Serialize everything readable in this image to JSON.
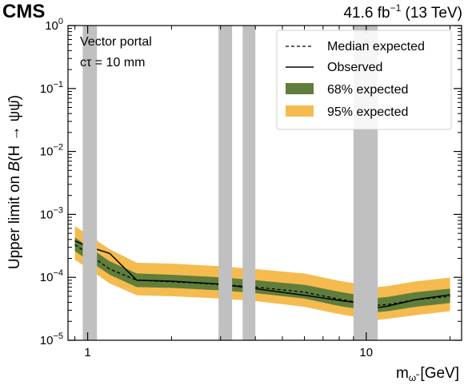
{
  "header": {
    "experiment": "CMS",
    "lumi_value": "41.6 fb",
    "lumi_exp": "−1",
    "energy": " (13 TeV)"
  },
  "annotation": {
    "line1": "Vector portal",
    "line2": "cτ = 10 mm"
  },
  "chart_data": {
    "type": "line",
    "title": "",
    "xlabel": "m_ω̃ [GeV]",
    "xlabel_main": "m",
    "xlabel_sub": "ω̃",
    "xlabel_unit": " [GeV]",
    "ylabel": "Upper limit on B(H → ψψ̄)",
    "x_scale": "log",
    "y_scale": "log",
    "xlim": [
      0.85,
      22
    ],
    "ylim": [
      1e-05,
      1.0
    ],
    "x_ticks": [
      {
        "value": 1,
        "label": "1"
      },
      {
        "value": 10,
        "label": "10"
      }
    ],
    "y_ticks": [
      {
        "value": 1e-05,
        "base": "10",
        "exp": "−5"
      },
      {
        "value": 0.0001,
        "base": "10",
        "exp": "−4"
      },
      {
        "value": 0.001,
        "base": "10",
        "exp": "−3"
      },
      {
        "value": 0.01,
        "base": "10",
        "exp": "−2"
      },
      {
        "value": 0.1,
        "base": "10",
        "exp": "−1"
      },
      {
        "value": 1.0,
        "base": "10",
        "exp": "0"
      }
    ],
    "legend_position": "top-right",
    "legend": [
      {
        "key": "median",
        "label": "Median expected",
        "style": "dashed",
        "color": "#000000"
      },
      {
        "key": "observed",
        "label": "Observed",
        "style": "solid",
        "color": "#000000"
      },
      {
        "key": "band68",
        "label": "68% expected",
        "style": "fill",
        "color": "#607d3b"
      },
      {
        "key": "band95",
        "label": "95% expected",
        "style": "fill",
        "color": "#f5bb4f"
      }
    ],
    "vetoed_mass_regions": [
      [
        0.96,
        1.08
      ],
      [
        2.95,
        3.3
      ],
      [
        3.6,
        4.0
      ],
      [
        9.0,
        11.0
      ]
    ],
    "x": [
      0.9,
      1.0,
      1.2,
      1.5,
      2.0,
      3.0,
      4.0,
      6.0,
      8.0,
      10.0,
      11.0,
      12.0,
      15.0,
      20.0
    ],
    "series": [
      {
        "name": "Median expected",
        "values": [
          0.00033,
          0.00024,
          0.000135,
          9e-05,
          8.5e-05,
          7.7e-05,
          7e-05,
          5.8e-05,
          4.5e-05,
          3.8e-05,
          3.6e-05,
          3.7e-05,
          4.4e-05,
          5e-05
        ]
      },
      {
        "name": "Observed",
        "values": [
          0.00038,
          0.00031,
          0.00024,
          9e-05,
          8.7e-05,
          7.8e-05,
          6.6e-05,
          5.2e-05,
          4.3e-05,
          3.8e-05,
          3.3e-05,
          3.5e-05,
          4.4e-05,
          5.3e-05
        ]
      }
    ],
    "bands": {
      "band68": {
        "lower": [
          0.00026,
          0.00019,
          0.00011,
          7e-05,
          6.8e-05,
          6.2e-05,
          5.6e-05,
          4.6e-05,
          3.5e-05,
          3e-05,
          2.8e-05,
          2.9e-05,
          3.4e-05,
          3.9e-05
        ],
        "upper": [
          0.00043,
          0.00031,
          0.00018,
          0.000115,
          0.00011,
          0.0001,
          9e-05,
          7.6e-05,
          5.9e-05,
          5e-05,
          4.7e-05,
          4.9e-05,
          5.8e-05,
          6.6e-05
        ]
      },
      "band95": {
        "lower": [
          0.00019,
          0.00014,
          8e-05,
          5.2e-05,
          5e-05,
          4.6e-05,
          4.2e-05,
          3.4e-05,
          2.6e-05,
          2.2e-05,
          2.1e-05,
          2.2e-05,
          2.5e-05,
          2.9e-05
        ],
        "upper": [
          0.00065,
          0.00048,
          0.00028,
          0.00017,
          0.000165,
          0.00015,
          0.000135,
          0.000115,
          8.8e-05,
          7.5e-05,
          7e-05,
          7.3e-05,
          8.6e-05,
          9.9e-05
        ]
      }
    }
  }
}
